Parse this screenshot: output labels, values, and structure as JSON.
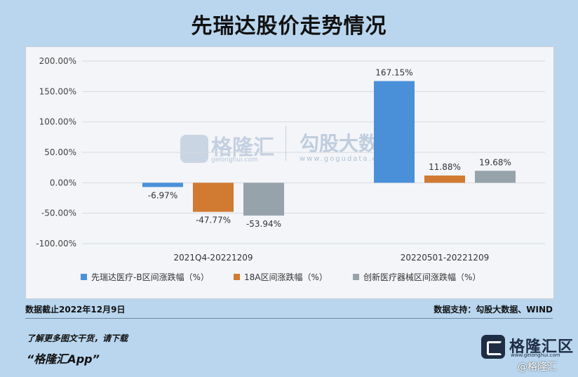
{
  "title": "先瑞达股价走势情况",
  "footer": {
    "date_note": "数据截止2022年12月9日",
    "source_note": "数据支持：勾股大数据、WIND",
    "promo": "了解更多图文干货，请下载",
    "app": "“格隆汇App”"
  },
  "watermark": {
    "left_text": "格隆汇",
    "left_sub": "gelonghui.com",
    "right_text": "勾股大数据",
    "right_sub": "www.gogudata.com"
  },
  "logo": {
    "text": "格隆汇区",
    "sub": "www.gelonghui.com",
    "credit": "@格隆汇"
  },
  "chart_data": {
    "type": "bar",
    "categories": [
      "2021Q4-20221209",
      "20220501-20221209"
    ],
    "series": [
      {
        "name": "先瑞达医疗-B区间涨跌幅（%）",
        "color": "#4a90d9",
        "values": [
          -6.97,
          167.15
        ],
        "labels": [
          "-6.97%",
          "167.15%"
        ]
      },
      {
        "name": "18A区间涨跌幅（%）",
        "color": "#d07a32",
        "values": [
          -47.77,
          11.88
        ],
        "labels": [
          "-47.77%",
          "11.88%"
        ]
      },
      {
        "name": "创新医疗器械区间涨跌幅（%）",
        "color": "#97a3ab",
        "values": [
          -53.94,
          19.68
        ],
        "labels": [
          "-53.94%",
          "19.68%"
        ]
      }
    ],
    "yticks": [
      "-100.00%",
      "-50.00%",
      "0.00%",
      "50.00%",
      "100.00%",
      "150.00%",
      "200.00%"
    ],
    "ylim": [
      -100,
      200
    ],
    "grid": true,
    "legend": "bottom"
  }
}
